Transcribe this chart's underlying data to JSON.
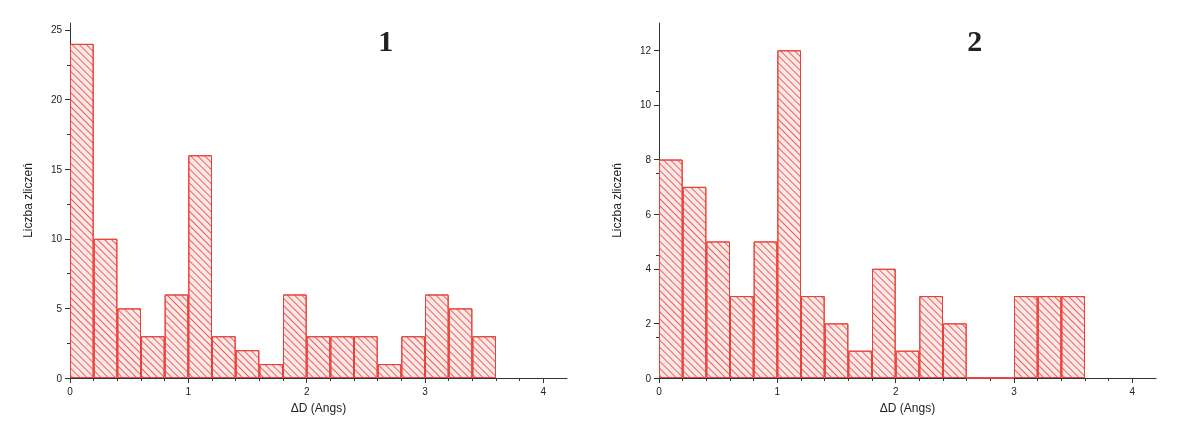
{
  "chart_data": [
    {
      "type": "histogram",
      "title": "1",
      "xlabel": "ΔD (Angs)",
      "ylabel": "Liczba zliczeń",
      "color": "#e8403a",
      "bins": [
        0,
        0.2,
        0.4,
        0.6,
        0.8,
        1.0,
        1.2,
        1.4,
        1.6,
        1.8,
        2.0,
        2.2,
        2.4,
        2.6,
        2.8,
        3.0,
        3.2,
        3.4,
        3.6
      ],
      "values": [
        24,
        10,
        5,
        3,
        6,
        16,
        3,
        2,
        1,
        6,
        3,
        3,
        3,
        1,
        3,
        6,
        5,
        3
      ],
      "xlim": [
        0,
        4.2
      ],
      "xticks": [
        0,
        1,
        2,
        3,
        4
      ],
      "ylim": [
        0,
        25.5
      ],
      "yticks": [
        0,
        5,
        10,
        15,
        20,
        25
      ],
      "grid": false
    },
    {
      "type": "histogram",
      "title": "2",
      "xlabel": "ΔD (Angs)",
      "ylabel": "Liczba zliczeń",
      "color": "#e8403a",
      "bins": [
        0,
        0.2,
        0.4,
        0.6,
        0.8,
        1.0,
        1.2,
        1.4,
        1.6,
        1.8,
        2.0,
        2.2,
        2.4,
        2.6,
        2.8,
        3.0,
        3.2,
        3.4,
        3.6
      ],
      "values": [
        8,
        7,
        5,
        3,
        5,
        12,
        3,
        2,
        1,
        4,
        1,
        3,
        2,
        0,
        0,
        3,
        3,
        3
      ],
      "xlim": [
        0,
        4.2
      ],
      "xticks": [
        0,
        1,
        2,
        3,
        4
      ],
      "ylim": [
        0,
        13
      ],
      "yticks": [
        0,
        2,
        4,
        6,
        8,
        10,
        12
      ],
      "grid": false
    }
  ]
}
